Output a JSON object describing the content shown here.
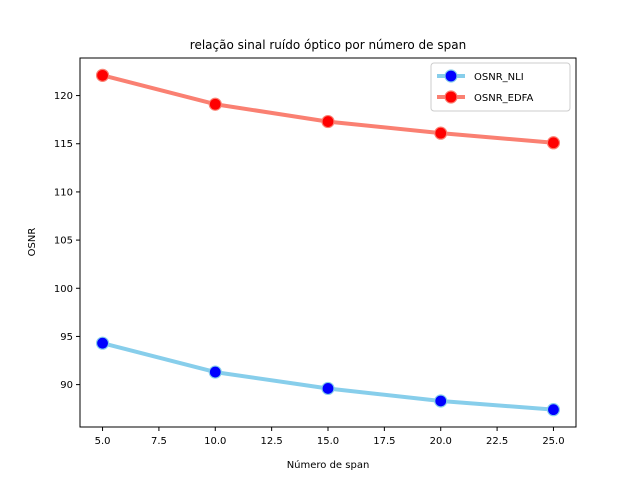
{
  "chart_data": {
    "type": "line",
    "title": "relação sinal ruído óptico por número de span",
    "xlabel": "Número de span",
    "ylabel": "OSNR",
    "x": [
      5,
      10,
      15,
      20,
      25
    ],
    "xlim": [
      4.0,
      26.0
    ],
    "ylim": [
      85.6,
      123.9
    ],
    "xticks": [
      5.0,
      7.5,
      10.0,
      12.5,
      15.0,
      17.5,
      20.0,
      22.5,
      25.0
    ],
    "xtick_labels": [
      "5.0",
      "7.5",
      "10.0",
      "12.5",
      "15.0",
      "17.5",
      "20.0",
      "22.5",
      "25.0"
    ],
    "yticks": [
      90,
      95,
      100,
      105,
      110,
      115,
      120
    ],
    "ytick_labels": [
      "90",
      "95",
      "100",
      "105",
      "110",
      "115",
      "120"
    ],
    "grid": false,
    "legend": "top-right",
    "series": [
      {
        "name": "OSNR_NLI",
        "values": [
          94.3,
          91.3,
          89.6,
          88.3,
          87.4
        ],
        "line_color": "#87ceeb",
        "marker_color": "#0000ff"
      },
      {
        "name": "OSNR_EDFA",
        "values": [
          122.1,
          119.1,
          117.3,
          116.1,
          115.1
        ],
        "line_color": "#fa8072",
        "marker_color": "#ff0000"
      }
    ]
  }
}
